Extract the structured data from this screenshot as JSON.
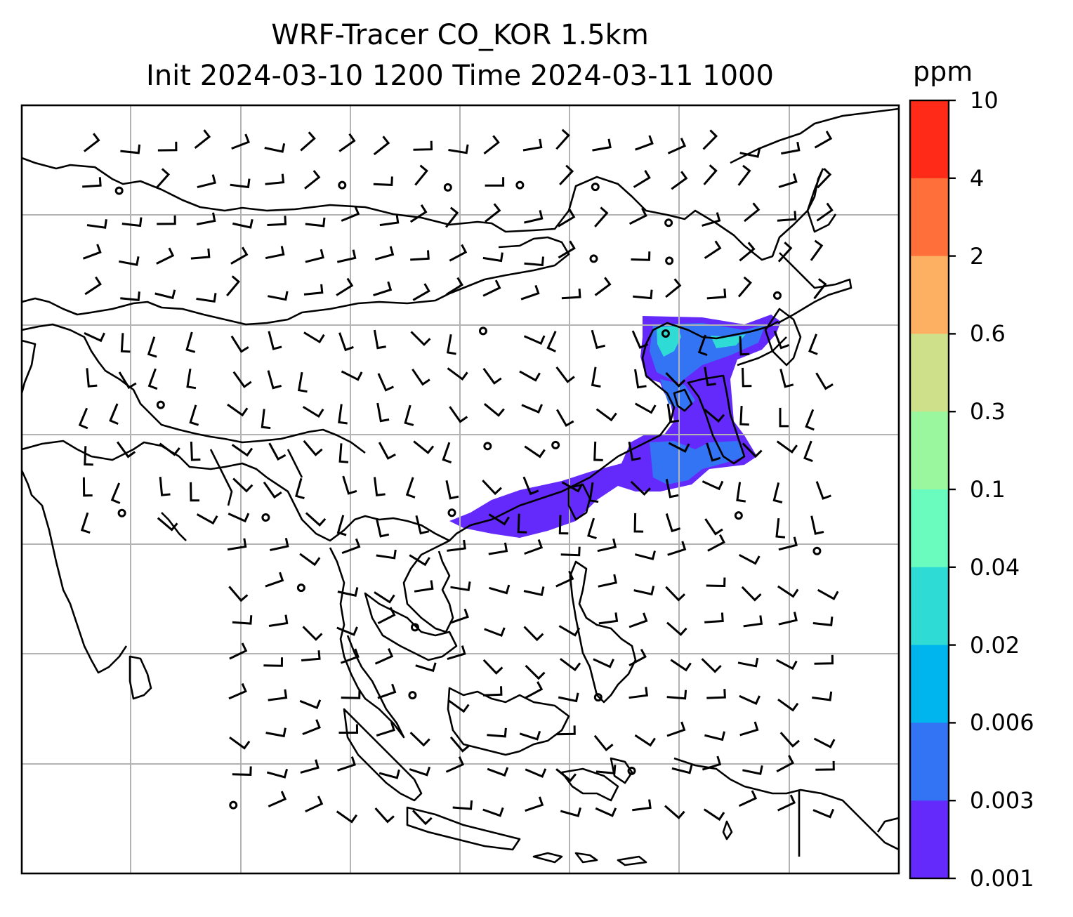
{
  "title": {
    "line1": "WRF-Tracer CO_KOR 1.5km",
    "line2": "Init 2024-03-10 1200 Time 2024-03-11 1000"
  },
  "colorbar": {
    "unit": "ppm",
    "levels": [
      {
        "label": "10"
      },
      {
        "label": "4"
      },
      {
        "label": "2"
      },
      {
        "label": "0.6"
      },
      {
        "label": "0.3"
      },
      {
        "label": "0.1"
      },
      {
        "label": "0.04"
      },
      {
        "label": "0.02"
      },
      {
        "label": "0.006"
      },
      {
        "label": "0.003"
      },
      {
        "label": "0.001"
      }
    ],
    "colors": [
      "#ff2a17",
      "#ff6f3a",
      "#fdb062",
      "#cfe08a",
      "#9bf79e",
      "#6afbbf",
      "#2fdbd5",
      "#00b4ee",
      "#3374f4",
      "#6429fb"
    ]
  },
  "map": {
    "region": "East Asia / Southeast Asia",
    "gridlines": true,
    "wind_barbs": true,
    "tracer_colors": {
      "low": "#6429fb",
      "mid": "#3374f4",
      "high": "#2fdbd5"
    }
  }
}
